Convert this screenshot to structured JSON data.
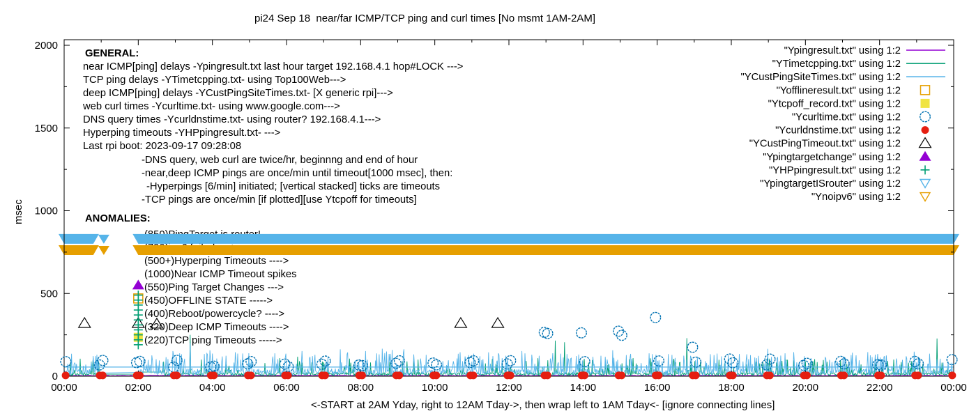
{
  "title": "pi24 Sep 18  near/far ICMP/TCP ping and curl times [No msmt 1AM-2AM]",
  "x_axis": {
    "label": "<-START at 2AM Yday, right to 12AM Tday->, then wrap left to 1AM Tday<- [ignore connecting lines]",
    "tick_labels": [
      "00:00",
      "02:00",
      "04:00",
      "06:00",
      "08:00",
      "10:00",
      "12:00",
      "14:00",
      "16:00",
      "18:00",
      "20:00",
      "22:00",
      "00:00"
    ],
    "hours_span": 24
  },
  "y_axis": {
    "label": "msec",
    "tick_values": [
      0,
      500,
      1000,
      1500,
      2000
    ],
    "max": 2000
  },
  "legend": [
    {
      "label": "\"Ypingresult.txt\" using 1:2",
      "marker": "line",
      "color": "#9400D3"
    },
    {
      "label": "\"YTimetcpping.txt\" using 1:2",
      "marker": "line",
      "color": "#009E73"
    },
    {
      "label": "\"YCustPingSiteTimes.txt\" using 1:2",
      "marker": "line",
      "color": "#56B4E9"
    },
    {
      "label": "\"Yofflineresult.txt\" using 1:2",
      "marker": "square-open",
      "color": "#E69F00"
    },
    {
      "label": "\"Ytcpoff_record.txt\" using 1:2",
      "marker": "square-filled",
      "color": "#F0E442"
    },
    {
      "label": "\"Ycurltime.txt\" using 1:2",
      "marker": "circle-open",
      "color": "#0072B2"
    },
    {
      "label": "\"Ycurldnstime.txt\" using 1:2",
      "marker": "circle-filled",
      "color": "#E51E10"
    },
    {
      "label": "\"YCustPingTimeout.txt\" using 1:2",
      "marker": "triangle-open",
      "color": "#000000"
    },
    {
      "label": "\"Ypingtargetchange\" using 1:2",
      "marker": "triangle-filled",
      "color": "#9400D3"
    },
    {
      "label": "\"YHPpingresult.txt\" using 1:2",
      "marker": "plus",
      "color": "#009E73"
    },
    {
      "label": "\"YpingtargetISrouter\" using 1:2",
      "marker": "tridown-open",
      "color": "#56B4E9"
    },
    {
      "label": "\"Ynoipv6\" using 1:2",
      "marker": "tridown-open",
      "color": "#E69F00"
    }
  ],
  "annotations": {
    "general_header": "GENERAL:",
    "general_lines": [
      "near ICMP[ping] delays -Ypingresult.txt last hour target 192.168.4.1 hop#LOCK --->",
      "TCP ping delays -YTimetcpping.txt- using Top100Web--->",
      "deep ICMP[ping] delays -YCustPingSiteTimes.txt- [X generic rpi]--->",
      "web curl times -Ycurltime.txt- using www.google.com--->",
      "DNS query times -Ycurldnstime.txt- using router? 192.168.4.1--->",
      "Hyperping timeouts -YHPpingresult.txt- --->",
      "Last rpi boot: 2023-09-17 09:28:08"
    ],
    "notes_lines": [
      "-DNS query, web curl are twice/hr, beginnng and end of hour",
      "-near,deep ICMP pings are once/min until timeout[1000 msec], then:",
      "-Hyperpings [6/min] initiated; [vertical stacked] ticks are timeouts",
      "-TCP pings are once/min [if plotted][use Ytcpoff for timeouts]"
    ],
    "anomalies_header": "ANOMALIES:",
    "anomaly_lines": [
      "(850)PingTarget is router!",
      "(790)ipv6 failed ---->",
      "(500+)Hyperping Timeouts ---->",
      "(1000)Near ICMP Timeout spikes",
      "(550)Ping Target Changes --->",
      "(450)OFFLINE STATE ----->",
      "(400)Reboot/powercycle? ---->",
      "(320)Deep ICMP Timeouts ---->",
      "(220)TCP ping Timeouts ----->"
    ]
  },
  "chart_data": {
    "type": "line",
    "x_unit": "hours 0-24 (wrapped day)",
    "y_unit": "msec",
    "ylim": [
      0,
      2000
    ],
    "no_measurement_gap_hours": [
      1,
      2
    ],
    "bands": [
      {
        "name": "YpingtargetISrouter",
        "level_msec": 830,
        "color": "#56B4E9",
        "gap_hours": [
          1,
          2
        ],
        "meaning": "(850)PingTarget is router!"
      },
      {
        "name": "Ynoipv6",
        "level_msec": 762,
        "color": "#E69F00",
        "gap_hours": [
          1,
          2
        ],
        "meaning": "(790)ipv6 failed"
      }
    ],
    "series": [
      {
        "name": "Ypingresult near ICMP",
        "color": "#9400D3",
        "style": "line",
        "baseline_msec": 3,
        "noise_max_msec": 5
      },
      {
        "name": "YTimetcpping TCP ping",
        "color": "#009E73",
        "style": "line",
        "baseline_msec": [
          4,
          22
        ],
        "spike_chance": 0.13,
        "spike_range_msec": [
          35,
          110
        ],
        "flat_segments": [
          [
            1,
            2,
            12
          ],
          [
            2,
            2.67,
            25
          ]
        ],
        "big_spikes": [
          [
            3.4,
            250
          ],
          [
            6.3,
            118
          ],
          [
            13.25,
            215
          ],
          [
            13.5,
            205
          ],
          [
            16.8,
            230
          ],
          [
            23.55,
            228
          ]
        ]
      },
      {
        "name": "YCustPingSiteTimes deep ICMP",
        "color": "#56B4E9",
        "style": "line",
        "baseline_msec": [
          6,
          46
        ],
        "spike_chance": 0.18,
        "spike_range_msec": [
          60,
          140
        ],
        "plateau_msec": 55,
        "big_spikes": [
          [
            3.4,
            200
          ]
        ]
      }
    ],
    "points": {
      "curl_circles": {
        "color": "#0072B2",
        "marker": "circle-open",
        "schedule": "pair at every hour",
        "typical_range_msec": [
          55,
          105
        ],
        "outliers_by_hour": {
          "0": [
            115,
            88
          ],
          "13": [
            265,
            258
          ],
          "14": [
            262,
            88
          ],
          "15": [
            272,
            247
          ],
          "16": [
            355,
            92
          ],
          "17": [
            175,
            85
          ]
        }
      },
      "dns_dots": {
        "color": "#E51E10",
        "marker": "circle-filled",
        "schedule": "pair at every hour",
        "value_msec": 5
      },
      "deep_icmp_timeouts": {
        "color": "#000000",
        "marker": "triangle-open",
        "points": [
          [
            0.55,
            320
          ],
          [
            2.0,
            320
          ],
          [
            2.5,
            316
          ],
          [
            10.7,
            320
          ],
          [
            11.7,
            320
          ]
        ]
      },
      "ping_target_change": {
        "color": "#9400D3",
        "marker": "triangle-filled",
        "points": [
          [
            2.0,
            550
          ]
        ]
      },
      "offline_state": {
        "color": "#E69F00",
        "marker": "square-open",
        "points": [
          [
            2.0,
            470
          ]
        ]
      },
      "tcp_off_record": {
        "color": "#F0E442",
        "marker": "square-filled",
        "points": [
          [
            2.0,
            235
          ]
        ]
      },
      "hyperping_timeouts": {
        "color": "#009E73",
        "marker": "plus",
        "stack": {
          "hour": 2.0,
          "from_msec": 190,
          "to_msec": 490,
          "step_msec": 30
        }
      },
      "isrouter_single": {
        "color": "#56B4E9",
        "marker": "tridown-filled",
        "points": [
          [
            1.07,
            830
          ]
        ]
      },
      "noipv6_single": {
        "color": "#E69F00",
        "marker": "tridown-filled",
        "points": [
          [
            1.07,
            762
          ]
        ]
      }
    }
  }
}
